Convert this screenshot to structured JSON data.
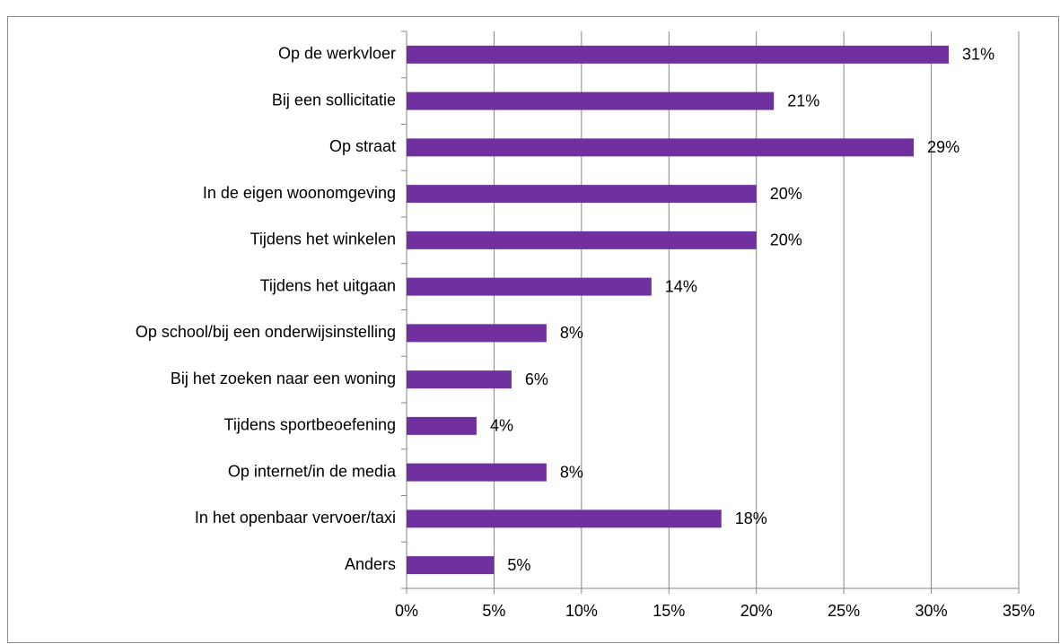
{
  "chart_data": {
    "type": "bar",
    "orientation": "horizontal",
    "categories": [
      "Op de werkvloer",
      "Bij een sollicitatie",
      "Op straat",
      "In de eigen woonomgeving",
      "Tijdens het winkelen",
      "Tijdens het uitgaan",
      "Op school/bij een onderwijsinstelling",
      "Bij het zoeken naar een woning",
      "Tijdens sportbeoefening",
      "Op internet/in de media",
      "In het openbaar vervoer/taxi",
      "Anders"
    ],
    "values": [
      31,
      21,
      29,
      20,
      20,
      14,
      8,
      6,
      4,
      8,
      18,
      5
    ],
    "value_labels": [
      "31%",
      "21%",
      "29%",
      "20%",
      "20%",
      "14%",
      "8%",
      "6%",
      "4%",
      "8%",
      "18%",
      "5%"
    ],
    "color": "#7030a0",
    "xlim": [
      0,
      35
    ],
    "xticks": [
      {
        "value": 0,
        "label": "0%"
      },
      {
        "value": 5,
        "label": "5%"
      },
      {
        "value": 10,
        "label": "10%"
      },
      {
        "value": 15,
        "label": "15%"
      },
      {
        "value": 20,
        "label": "20%"
      },
      {
        "value": 25,
        "label": "25%"
      },
      {
        "value": 30,
        "label": "30%"
      },
      {
        "value": 35,
        "label": "35%"
      }
    ],
    "grid": true
  }
}
